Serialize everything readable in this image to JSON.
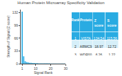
{
  "chart_data": [
    {
      "type": "bar",
      "title": "Human Protein Microarray Specificity Validation",
      "xlabel": "Signal Rank",
      "ylabel": "Strength of Signal (Z score)",
      "x": [
        1,
        2,
        3,
        4,
        5,
        6,
        7,
        8,
        9,
        10,
        11,
        12,
        13,
        14,
        15,
        16,
        17,
        18,
        19,
        20,
        21,
        22,
        23,
        24,
        25,
        26,
        27,
        28,
        29,
        30
      ],
      "values": [
        134.54,
        18.97,
        6.26,
        4.1,
        3.0,
        2.4,
        2.0,
        1.8,
        1.6,
        1.4,
        1.2,
        1.1,
        1.0,
        0.95,
        0.9,
        0.85,
        0.8,
        0.75,
        0.7,
        0.65,
        0.6,
        0.58,
        0.55,
        0.52,
        0.5,
        0.48,
        0.45,
        0.42,
        0.4,
        0.38
      ],
      "color": "#29abe2",
      "xlim": [
        0,
        30
      ],
      "xticks": [
        1,
        10,
        20,
        30
      ],
      "ylim": [
        0,
        140
      ],
      "yticks": [
        0,
        33,
        66,
        99,
        132
      ],
      "grid": false
    },
    {
      "type": "table",
      "headers": [
        "Rank",
        "Protein",
        "Z score",
        "S score"
      ],
      "rows": [
        [
          "1",
          "VISTA",
          "134.54",
          "115.56"
        ],
        [
          "2",
          "ARMC9",
          "18.97",
          "12.72"
        ],
        [
          "3",
          "WDR00",
          "6.26",
          "1.22"
        ]
      ],
      "colors": [
        "#29abe2",
        "#29abe2",
        "#d6eff9",
        "#ffffff"
      ]
    }
  ]
}
